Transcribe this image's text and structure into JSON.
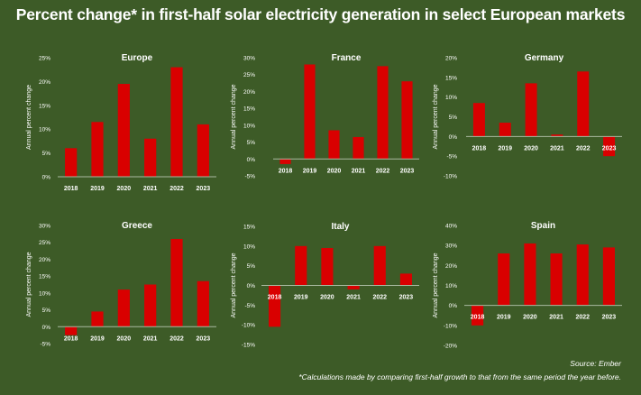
{
  "title": "Percent change* in first-half solar electricity generation in select European markets",
  "source": "Source: Ember",
  "footnote": "*Calculations made by comparing first-half growth to that from the same period the year before.",
  "colors": {
    "background": "#3d5b27",
    "bar": "#d90000",
    "text": "#ffffff",
    "axis": "#a9b9a0"
  },
  "chart_data": [
    {
      "type": "bar",
      "title": "Europe",
      "ylabel": "Annual percent change",
      "categories": [
        "2018",
        "2019",
        "2020",
        "2021",
        "2022",
        "2023"
      ],
      "values": [
        6,
        11.5,
        19.5,
        8,
        23,
        11
      ],
      "ylim": [
        0,
        25
      ],
      "yticks": [
        0,
        5,
        10,
        15,
        20,
        25
      ],
      "ytick_labels": [
        "0%",
        "5%",
        "10%",
        "15%",
        "20%",
        "25%"
      ],
      "grid": false
    },
    {
      "type": "bar",
      "title": "France",
      "ylabel": "Annual percent change",
      "categories": [
        "2018",
        "2019",
        "2020",
        "2021",
        "2022",
        "2023"
      ],
      "values": [
        -1.5,
        28,
        8.5,
        6.5,
        27.5,
        23
      ],
      "ylim": [
        -5,
        30
      ],
      "yticks": [
        -5,
        0,
        5,
        10,
        15,
        20,
        25,
        30
      ],
      "ytick_labels": [
        "-5%",
        "0%",
        "5%",
        "10%",
        "15%",
        "20%",
        "25%",
        "30%"
      ],
      "grid": false
    },
    {
      "type": "bar",
      "title": "Germany",
      "ylabel": "Annual percent change",
      "categories": [
        "2018",
        "2019",
        "2020",
        "2021",
        "2022",
        "2023"
      ],
      "values": [
        8.5,
        3.5,
        13.5,
        0.5,
        16.5,
        -5
      ],
      "ylim": [
        -10,
        20
      ],
      "yticks": [
        -10,
        -5,
        0,
        5,
        10,
        15,
        20
      ],
      "ytick_labels": [
        "-10%",
        "-5%",
        "0%",
        "5%",
        "10%",
        "15%",
        "20%"
      ],
      "grid": false
    },
    {
      "type": "bar",
      "title": "Greece",
      "ylabel": "Annual percent change",
      "categories": [
        "2018",
        "2019",
        "2020",
        "2021",
        "2022",
        "2023"
      ],
      "values": [
        -2.5,
        4.5,
        11,
        12.5,
        26,
        13.5
      ],
      "ylim": [
        -5,
        30
      ],
      "yticks": [
        -5,
        0,
        5,
        10,
        15,
        20,
        25,
        30
      ],
      "ytick_labels": [
        "-5%",
        "0%",
        "5%",
        "10%",
        "15%",
        "20%",
        "25%",
        "30%"
      ],
      "grid": false
    },
    {
      "type": "bar",
      "title": "Italy",
      "ylabel": "Annual percent change",
      "categories": [
        "2018",
        "2019",
        "2020",
        "2021",
        "2022",
        "2023"
      ],
      "values": [
        -10.5,
        10,
        9.5,
        -1,
        10,
        3
      ],
      "ylim": [
        -15,
        15
      ],
      "yticks": [
        -15,
        -10,
        -5,
        0,
        5,
        10,
        15
      ],
      "ytick_labels": [
        "-15%",
        "-10%",
        "-5%",
        "0%",
        "5%",
        "10%",
        "15%"
      ],
      "grid": false
    },
    {
      "type": "bar",
      "title": "Spain",
      "ylabel": "Annual percent change",
      "categories": [
        "2018",
        "2019",
        "2020",
        "2021",
        "2022",
        "2023"
      ],
      "values": [
        -10,
        26,
        31,
        26,
        30.5,
        29
      ],
      "ylim": [
        -20,
        40
      ],
      "yticks": [
        -20,
        -10,
        0,
        10,
        20,
        30,
        40
      ],
      "ytick_labels": [
        "-20%",
        "-10%",
        "0%",
        "10%",
        "20%",
        "30%",
        "40%"
      ],
      "grid": false
    }
  ]
}
